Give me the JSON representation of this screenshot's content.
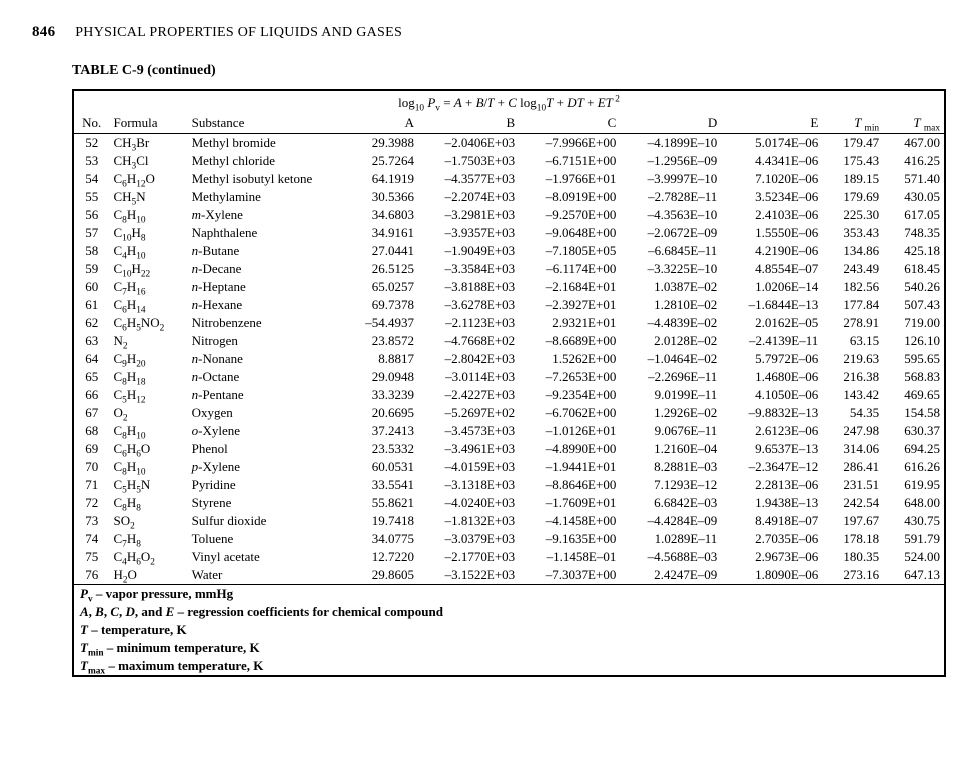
{
  "page": {
    "number": "846",
    "section": "PHYSICAL PROPERTIES OF LIQUIDS AND GASES",
    "table_caption": "TABLE C-9 (continued)"
  },
  "equation_html": "log<sub>10</sub> <span class='italic'>P</span><sub>v</sub> = <span class='italic'>A</span> + <span class='italic'>B</span>/<span class='italic'>T</span> + <span class='italic'>C</span> log<sub>10</sub><span class='italic'>T</span> + <span class='italic'>DT</span> + <span class='italic'>ET</span><sup> 2</sup>",
  "headers": {
    "no": "No.",
    "formula": "Formula",
    "substance": "Substance",
    "A": "A",
    "B": "B",
    "C": "C",
    "D": "D",
    "E": "E",
    "Tmin_html": "<span class='italic'>T</span> <sub>min</sub>",
    "Tmax_html": "<span class='italic'>T</span> <sub>max</sub>"
  },
  "rows": [
    {
      "no": "52",
      "formula_html": "CH<sub>3</sub>Br",
      "substance_html": "Methyl bromide",
      "A": "29.3988",
      "B": "–2.0406E+03",
      "C": "–7.9966E+00",
      "D": "–4.1899E–10",
      "E": "5.0174E–06",
      "Tmin": "179.47",
      "Tmax": "467.00"
    },
    {
      "no": "53",
      "formula_html": "CH<sub>3</sub>Cl",
      "substance_html": "Methyl chloride",
      "A": "25.7264",
      "B": "–1.7503E+03",
      "C": "–6.7151E+00",
      "D": "–1.2956E–09",
      "E": "4.4341E–06",
      "Tmin": "175.43",
      "Tmax": "416.25"
    },
    {
      "no": "54",
      "formula_html": "C<sub>6</sub>H<sub>12</sub>O",
      "substance_html": "Methyl isobutyl ketone",
      "A": "64.1919",
      "B": "–4.3577E+03",
      "C": "–1.9766E+01",
      "D": "–3.9997E–10",
      "E": "7.1020E–06",
      "Tmin": "189.15",
      "Tmax": "571.40"
    },
    {
      "no": "55",
      "formula_html": "CH<sub>5</sub>N",
      "substance_html": "Methylamine",
      "A": "30.5366",
      "B": "–2.2074E+03",
      "C": "–8.0919E+00",
      "D": "–2.7828E–11",
      "E": "3.5234E–06",
      "Tmin": "179.69",
      "Tmax": "430.05"
    },
    {
      "no": "56",
      "formula_html": "C<sub>8</sub>H<sub>10</sub>",
      "substance_html": "<span class='italic'>m</span>-Xylene",
      "A": "34.6803",
      "B": "–3.2981E+03",
      "C": "–9.2570E+00",
      "D": "–4.3563E–10",
      "E": "2.4103E–06",
      "Tmin": "225.30",
      "Tmax": "617.05"
    },
    {
      "no": "57",
      "formula_html": "C<sub>10</sub>H<sub>8</sub>",
      "substance_html": "Naphthalene",
      "A": "34.9161",
      "B": "–3.9357E+03",
      "C": "–9.0648E+00",
      "D": "–2.0672E–09",
      "E": "1.5550E–06",
      "Tmin": "353.43",
      "Tmax": "748.35"
    },
    {
      "no": "58",
      "formula_html": "C<sub>4</sub>H<sub>10</sub>",
      "substance_html": "<span class='italic'>n</span>-Butane",
      "A": "27.0441",
      "B": "–1.9049E+03",
      "C": "–7.1805E+05",
      "D": "–6.6845E–11",
      "E": "4.2190E–06",
      "Tmin": "134.86",
      "Tmax": "425.18"
    },
    {
      "no": "59",
      "formula_html": "C<sub>10</sub>H<sub>22</sub>",
      "substance_html": "<span class='italic'>n</span>-Decane",
      "A": "26.5125",
      "B": "–3.3584E+03",
      "C": "–6.1174E+00",
      "D": "–3.3225E–10",
      "E": "4.8554E–07",
      "Tmin": "243.49",
      "Tmax": "618.45"
    },
    {
      "no": "60",
      "formula_html": "C<sub>7</sub>H<sub>16</sub>",
      "substance_html": "<span class='italic'>n</span>-Heptane",
      "A": "65.0257",
      "B": "–3.8188E+03",
      "C": "–2.1684E+01",
      "D": "1.0387E–02",
      "E": "1.0206E–14",
      "Tmin": "182.56",
      "Tmax": "540.26"
    },
    {
      "no": "61",
      "formula_html": "C<sub>6</sub>H<sub>14</sub>",
      "substance_html": "<span class='italic'>n</span>-Hexane",
      "A": "69.7378",
      "B": "–3.6278E+03",
      "C": "–2.3927E+01",
      "D": "1.2810E–02",
      "E": "–1.6844E–13",
      "Tmin": "177.84",
      "Tmax": "507.43"
    },
    {
      "no": "62",
      "formula_html": "C<sub>6</sub>H<sub>5</sub>NO<sub>2</sub>",
      "substance_html": "Nitrobenzene",
      "A": "–54.4937",
      "B": "–2.1123E+03",
      "C": "2.9321E+01",
      "D": "–4.4839E–02",
      "E": "2.0162E–05",
      "Tmin": "278.91",
      "Tmax": "719.00"
    },
    {
      "no": "63",
      "formula_html": "N<sub>2</sub>",
      "substance_html": "Nitrogen",
      "A": "23.8572",
      "B": "–4.7668E+02",
      "C": "–8.6689E+00",
      "D": "2.0128E–02",
      "E": "–2.4139E–11",
      "Tmin": "63.15",
      "Tmax": "126.10"
    },
    {
      "no": "64",
      "formula_html": "C<sub>9</sub>H<sub>20</sub>",
      "substance_html": "<span class='italic'>n</span>-Nonane",
      "A": "8.8817",
      "B": "–2.8042E+03",
      "C": "1.5262E+00",
      "D": "–1.0464E–02",
      "E": "5.7972E–06",
      "Tmin": "219.63",
      "Tmax": "595.65"
    },
    {
      "no": "65",
      "formula_html": "C<sub>8</sub>H<sub>18</sub>",
      "substance_html": "<span class='italic'>n</span>-Octane",
      "A": "29.0948",
      "B": "–3.0114E+03",
      "C": "–7.2653E+00",
      "D": "–2.2696E–11",
      "E": "1.4680E–06",
      "Tmin": "216.38",
      "Tmax": "568.83"
    },
    {
      "no": "66",
      "formula_html": "C<sub>5</sub>H<sub>12</sub>",
      "substance_html": "<span class='italic'>n</span>-Pentane",
      "A": "33.3239",
      "B": "–2.4227E+03",
      "C": "–9.2354E+00",
      "D": "9.0199E–11",
      "E": "4.1050E–06",
      "Tmin": "143.42",
      "Tmax": "469.65"
    },
    {
      "no": "67",
      "formula_html": "O<sub>2</sub>",
      "substance_html": "Oxygen",
      "A": "20.6695",
      "B": "–5.2697E+02",
      "C": "–6.7062E+00",
      "D": "1.2926E–02",
      "E": "–9.8832E–13",
      "Tmin": "54.35",
      "Tmax": "154.58"
    },
    {
      "no": "68",
      "formula_html": "C<sub>8</sub>H<sub>10</sub>",
      "substance_html": "<span class='italic'>o</span>-Xylene",
      "A": "37.2413",
      "B": "–3.4573E+03",
      "C": "–1.0126E+01",
      "D": "9.0676E–11",
      "E": "2.6123E–06",
      "Tmin": "247.98",
      "Tmax": "630.37"
    },
    {
      "no": "69",
      "formula_html": "C<sub>6</sub>H<sub>6</sub>O",
      "substance_html": "Phenol",
      "A": "23.5332",
      "B": "–3.4961E+03",
      "C": "–4.8990E+00",
      "D": "1.2160E–04",
      "E": "9.6537E–13",
      "Tmin": "314.06",
      "Tmax": "694.25"
    },
    {
      "no": "70",
      "formula_html": "C<sub>8</sub>H<sub>10</sub>",
      "substance_html": "<span class='italic'>p</span>-Xylene",
      "A": "60.0531",
      "B": "–4.0159E+03",
      "C": "–1.9441E+01",
      "D": "8.2881E–03",
      "E": "–2.3647E–12",
      "Tmin": "286.41",
      "Tmax": "616.26"
    },
    {
      "no": "71",
      "formula_html": "C<sub>5</sub>H<sub>5</sub>N",
      "substance_html": "Pyridine",
      "A": "33.5541",
      "B": "–3.1318E+03",
      "C": "–8.8646E+00",
      "D": "7.1293E–12",
      "E": "2.2813E–06",
      "Tmin": "231.51",
      "Tmax": "619.95"
    },
    {
      "no": "72",
      "formula_html": "C<sub>8</sub>H<sub>8</sub>",
      "substance_html": "Styrene",
      "A": "55.8621",
      "B": "–4.0240E+03",
      "C": "–1.7609E+01",
      "D": "6.6842E–03",
      "E": "1.9438E–13",
      "Tmin": "242.54",
      "Tmax": "648.00"
    },
    {
      "no": "73",
      "formula_html": "SO<sub>2</sub>",
      "substance_html": "Sulfur dioxide",
      "A": "19.7418",
      "B": "–1.8132E+03",
      "C": "–4.1458E+00",
      "D": "–4.4284E–09",
      "E": "8.4918E–07",
      "Tmin": "197.67",
      "Tmax": "430.75"
    },
    {
      "no": "74",
      "formula_html": "C<sub>7</sub>H<sub>8</sub>",
      "substance_html": "Toluene",
      "A": "34.0775",
      "B": "–3.0379E+03",
      "C": "–9.1635E+00",
      "D": "1.0289E–11",
      "E": "2.7035E–06",
      "Tmin": "178.18",
      "Tmax": "591.79"
    },
    {
      "no": "75",
      "formula_html": "C<sub>4</sub>H<sub>6</sub>O<sub>2</sub>",
      "substance_html": "Vinyl acetate",
      "A": "12.7220",
      "B": "–2.1770E+03",
      "C": "–1.1458E–01",
      "D": "–4.5688E–03",
      "E": "2.9673E–06",
      "Tmin": "180.35",
      "Tmax": "524.00"
    },
    {
      "no": "76",
      "formula_html": "H<sub>2</sub>O",
      "substance_html": "Water",
      "A": "29.8605",
      "B": "–3.1522E+03",
      "C": "–7.3037E+00",
      "D": "2.4247E–09",
      "E": "1.8090E–06",
      "Tmin": "273.16",
      "Tmax": "647.13"
    }
  ],
  "notes_html": [
    "<span class='italic'>P</span><sub>v</sub> – vapor pressure, mmHg",
    "<span class='italic'>A</span>, <span class='italic'>B</span>, <span class='italic'>C</span>, <span class='italic'>D</span>, and <span class='italic'>E</span> – regression coefficients for chemical compound",
    "<span class='italic'>T</span> – temperature, K",
    "<span class='italic'>T</span><sub>min</sub> – minimum temperature, K",
    "<span class='italic'>T</span><sub>max</sub> – maximum temperature, K"
  ]
}
